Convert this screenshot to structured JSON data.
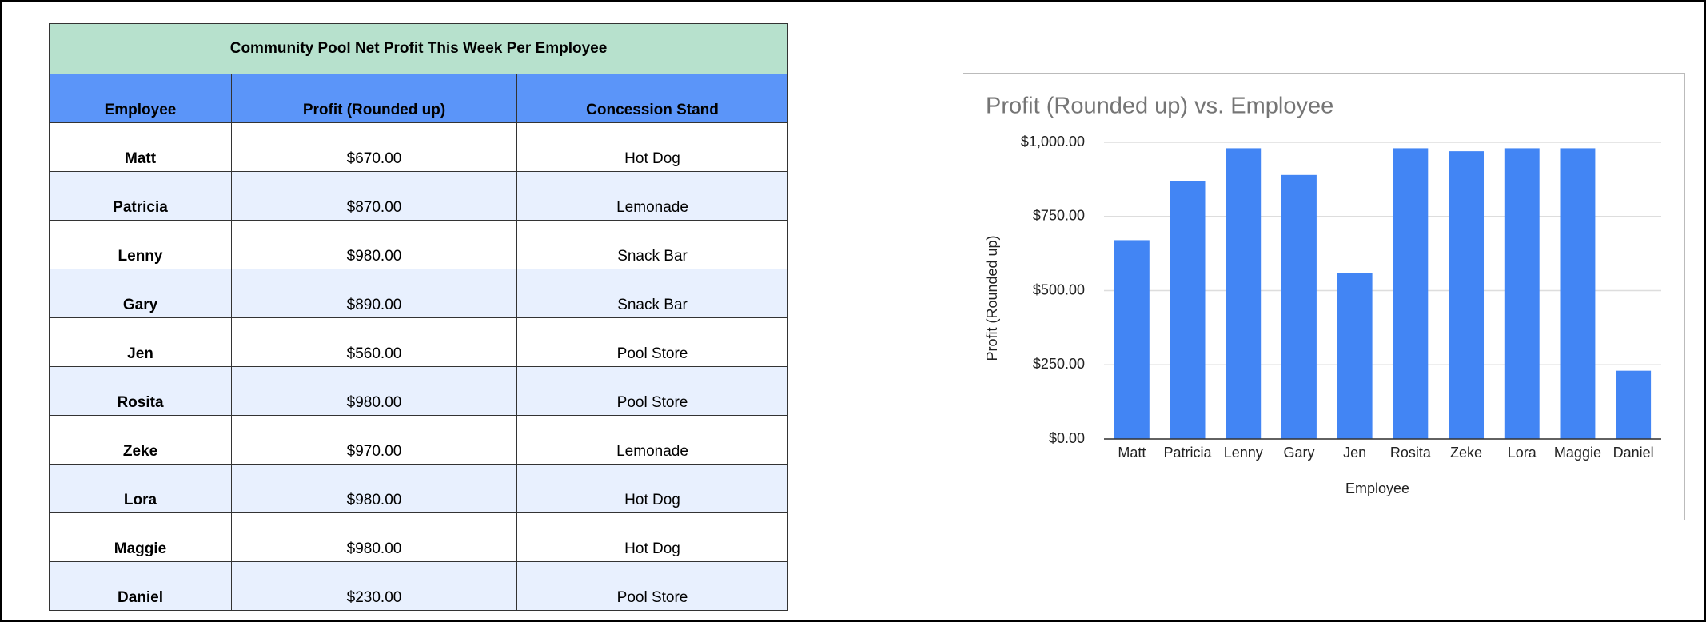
{
  "table": {
    "title": "Community Pool Net Profit This Week Per Employee",
    "header": [
      "Employee",
      "Profit (Rounded up)",
      "Concession Stand"
    ],
    "rows": [
      [
        "Matt",
        "$670.00",
        "Hot Dog"
      ],
      [
        "Patricia",
        "$870.00",
        "Lemonade"
      ],
      [
        "Lenny",
        "$980.00",
        "Snack Bar"
      ],
      [
        "Gary",
        "$890.00",
        "Snack Bar"
      ],
      [
        "Jen",
        "$560.00",
        "Pool Store"
      ],
      [
        "Rosita",
        "$980.00",
        "Pool Store"
      ],
      [
        "Zeke",
        "$970.00",
        "Lemonade"
      ],
      [
        "Lora",
        "$980.00",
        "Hot Dog"
      ],
      [
        "Maggie",
        "$980.00",
        "Hot Dog"
      ],
      [
        "Daniel",
        "$230.00",
        "Pool Store"
      ]
    ]
  },
  "chart_data": {
    "type": "bar",
    "title": "Profit (Rounded up) vs. Employee",
    "x_label": "Employee",
    "y_label": "Profit (Rounded up)",
    "categories": [
      "Matt",
      "Patricia",
      "Lenny",
      "Gary",
      "Jen",
      "Rosita",
      "Zeke",
      "Lora",
      "Maggie",
      "Daniel"
    ],
    "values": [
      670,
      870,
      980,
      890,
      560,
      980,
      970,
      980,
      980,
      230
    ],
    "color": "#4285f4",
    "ylim": [
      0,
      1000
    ],
    "yticks": [
      {
        "value": 0,
        "label": "$0.00"
      },
      {
        "value": 250,
        "label": "$250.00"
      },
      {
        "value": 500,
        "label": "$500.00"
      },
      {
        "value": 750,
        "label": "$750.00"
      },
      {
        "value": 1000,
        "label": "$1,000.00"
      }
    ],
    "grid": true
  }
}
